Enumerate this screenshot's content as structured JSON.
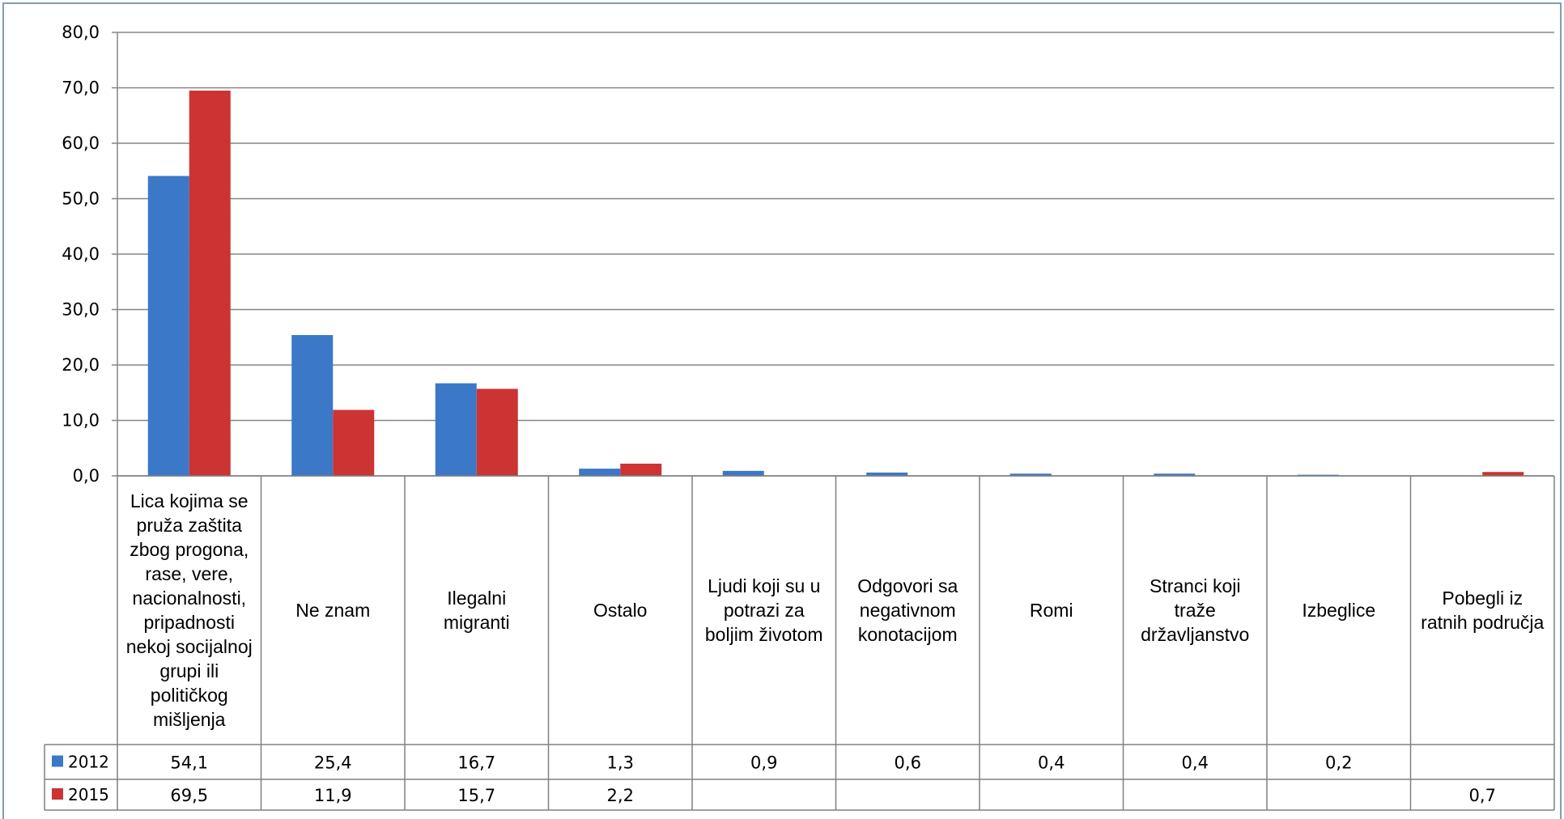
{
  "chart_data": {
    "type": "bar",
    "title": "",
    "xlabel": "",
    "ylabel": "",
    "ylim": [
      0,
      80
    ],
    "yticks": [
      "0,0",
      "10,0",
      "20,0",
      "30,0",
      "40,0",
      "50,0",
      "60,0",
      "70,0",
      "80,0"
    ],
    "grid": true,
    "legend": "data-table-left",
    "categories": [
      "Lica kojima se pruža zaštita zbog progona, rase, vere, nacionalnosti, pripadnosti nekoj socijalnoj grupi ili političkog mišljenja",
      "Ne znam",
      "Ilegalni migranti",
      "Ostalo",
      "Ljudi koji su u potrazi za boljim životom",
      "Odgovori sa negativnom konotacijom",
      "Romi",
      "Stranci koji traže državljanstvo",
      "Izbeglice",
      "Pobegli iz ratnih područja"
    ],
    "category_lines": [
      [
        "Lica kojima se",
        "pruža zaštita",
        "zbog progona,",
        "rase, vere,",
        "nacionalnosti,",
        "pripadnosti",
        "nekoj socijalnoj",
        "grupi ili",
        "političkog",
        "mišljenja"
      ],
      [
        "Ne znam"
      ],
      [
        "Ilegalni",
        "migranti"
      ],
      [
        "Ostalo"
      ],
      [
        "Ljudi koji su u",
        "potrazi za",
        "boljim životom"
      ],
      [
        "Odgovori sa",
        "negativnom",
        "konotacijom"
      ],
      [
        "Romi"
      ],
      [
        "Stranci koji",
        "traže",
        "državljanstvo"
      ],
      [
        "Izbeglice"
      ],
      [
        "Pobegli iz",
        "ratnih područja"
      ]
    ],
    "series": [
      {
        "name": "2012",
        "color": "#3b78c8",
        "values": [
          54.1,
          25.4,
          16.7,
          1.3,
          0.9,
          0.6,
          0.4,
          0.4,
          0.2,
          null
        ],
        "labels": [
          "54,1",
          "25,4",
          "16,7",
          "1,3",
          "0,9",
          "0,6",
          "0,4",
          "0,4",
          "0,2",
          ""
        ]
      },
      {
        "name": "2015",
        "color": "#cc3333",
        "values": [
          69.5,
          11.9,
          15.7,
          2.2,
          null,
          null,
          null,
          null,
          null,
          0.7
        ],
        "labels": [
          "69,5",
          "11,9",
          "15,7",
          "2,2",
          "",
          "",
          "",
          "",
          "",
          "0,7"
        ]
      }
    ]
  }
}
